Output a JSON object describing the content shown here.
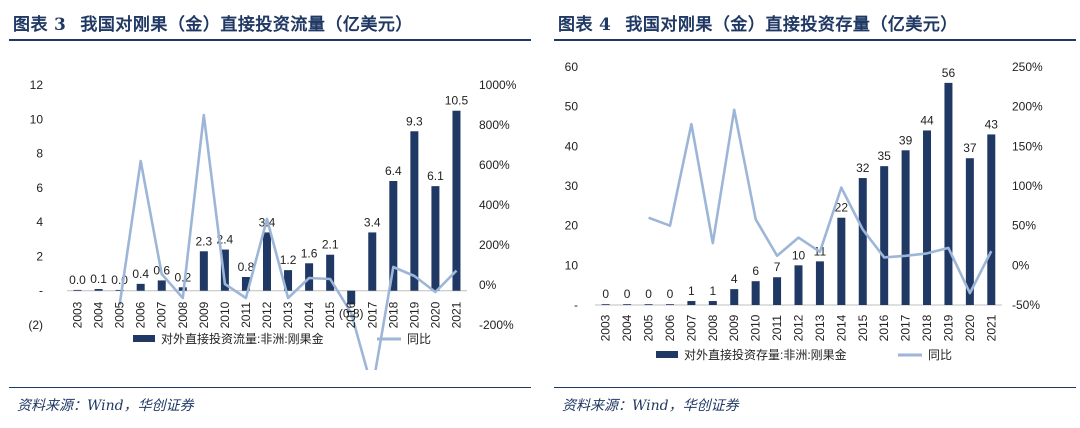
{
  "figures": [
    {
      "title_prefix": "图表",
      "number": "3",
      "title": "我国对刚果（金）直接投资流量（亿美元）",
      "source": "资料来源：Wind，华创证券"
    },
    {
      "title_prefix": "图表",
      "number": "4",
      "title": "我国对刚果（金）直接投资存量（亿美元）",
      "source": "资料来源：Wind，华创证券"
    }
  ],
  "chart_data": [
    {
      "type": "bar",
      "title": "我国对刚果（金）直接投资流量（亿美元）",
      "categories": [
        "2003",
        "2004",
        "2005",
        "2006",
        "2007",
        "2008",
        "2009",
        "2010",
        "2011",
        "2012",
        "2013",
        "2014",
        "2015",
        "2016",
        "2017",
        "2018",
        "2019",
        "2020",
        "2021"
      ],
      "series": [
        {
          "name": "对外直接投资流量:非洲:刚果金",
          "kind": "bar",
          "axis": "left",
          "values": [
            0.0,
            0.1,
            0.0,
            0.4,
            0.6,
            0.2,
            2.3,
            2.4,
            0.8,
            3.4,
            1.2,
            1.6,
            2.1,
            -0.8,
            3.4,
            6.4,
            9.3,
            6.1,
            10.5
          ],
          "labels": [
            "0.0",
            "0.1",
            "0.0",
            "0.4",
            "0.6",
            "0.2",
            "2.3",
            "2.4",
            "0.8",
            "3.4",
            "1.2",
            "1.6",
            "2.1",
            "(0.8)",
            "3.4",
            "6.4",
            "9.3",
            "6.1",
            "10.5"
          ],
          "color": "#1f3864"
        },
        {
          "name": "同比",
          "kind": "line",
          "axis": "right",
          "values": [
            null,
            null,
            -100,
            620,
            55,
            -65,
            850,
            5,
            -65,
            330,
            -65,
            35,
            30,
            -140,
            -520,
            90,
            45,
            -35,
            72
          ],
          "color": "#9db6d8"
        }
      ],
      "left_axis": {
        "ylim": [
          -2,
          12
        ],
        "ticks": [
          -2,
          0,
          2,
          4,
          6,
          8,
          10,
          12
        ],
        "tick_labels": [
          "(2)",
          "-",
          "2",
          "4",
          "6",
          "8",
          "10",
          "12"
        ]
      },
      "right_axis": {
        "ylim": [
          -200,
          1000
        ],
        "ticks": [
          -200,
          0,
          200,
          400,
          600,
          800,
          1000
        ],
        "tick_labels": [
          "-200%",
          "0%",
          "200%",
          "400%",
          "600%",
          "800%",
          "1000%"
        ]
      },
      "grid": false,
      "legend_position": "bottom"
    },
    {
      "type": "bar",
      "title": "我国对刚果（金）直接投资存量（亿美元）",
      "categories": [
        "2003",
        "2004",
        "2005",
        "2006",
        "2007",
        "2008",
        "2009",
        "2010",
        "2011",
        "2012",
        "2013",
        "2014",
        "2015",
        "2016",
        "2017",
        "2018",
        "2019",
        "2020",
        "2021"
      ],
      "series": [
        {
          "name": "对外直接投资存量:非洲:刚果金",
          "kind": "bar",
          "axis": "left",
          "values": [
            0,
            0,
            0,
            0,
            1,
            1,
            4,
            6,
            7,
            10,
            11,
            22,
            32,
            35,
            39,
            44,
            56,
            37,
            43
          ],
          "labels": [
            "0",
            "0",
            "0",
            "0",
            "1",
            "1",
            "4",
            "6",
            "7",
            "10",
            "11",
            "22",
            "32",
            "35",
            "39",
            "44",
            "56",
            "37",
            "43"
          ],
          "color": "#1f3864"
        },
        {
          "name": "同比",
          "kind": "line",
          "axis": "right",
          "values": [
            null,
            null,
            60,
            50,
            178,
            28,
            196,
            58,
            12,
            35,
            17,
            98,
            45,
            10,
            12,
            15,
            22,
            -35,
            18
          ],
          "color": "#9db6d8"
        }
      ],
      "left_axis": {
        "ylim": [
          0,
          60
        ],
        "ticks": [
          0,
          10,
          20,
          30,
          40,
          50,
          60
        ],
        "tick_labels": [
          "-",
          "10",
          "20",
          "30",
          "40",
          "50",
          "60"
        ]
      },
      "right_axis": {
        "ylim": [
          -50,
          250
        ],
        "ticks": [
          -50,
          0,
          50,
          100,
          150,
          200,
          250
        ],
        "tick_labels": [
          "-50%",
          "0%",
          "50%",
          "100%",
          "150%",
          "200%",
          "250%"
        ]
      },
      "grid": false,
      "legend_position": "bottom"
    }
  ]
}
